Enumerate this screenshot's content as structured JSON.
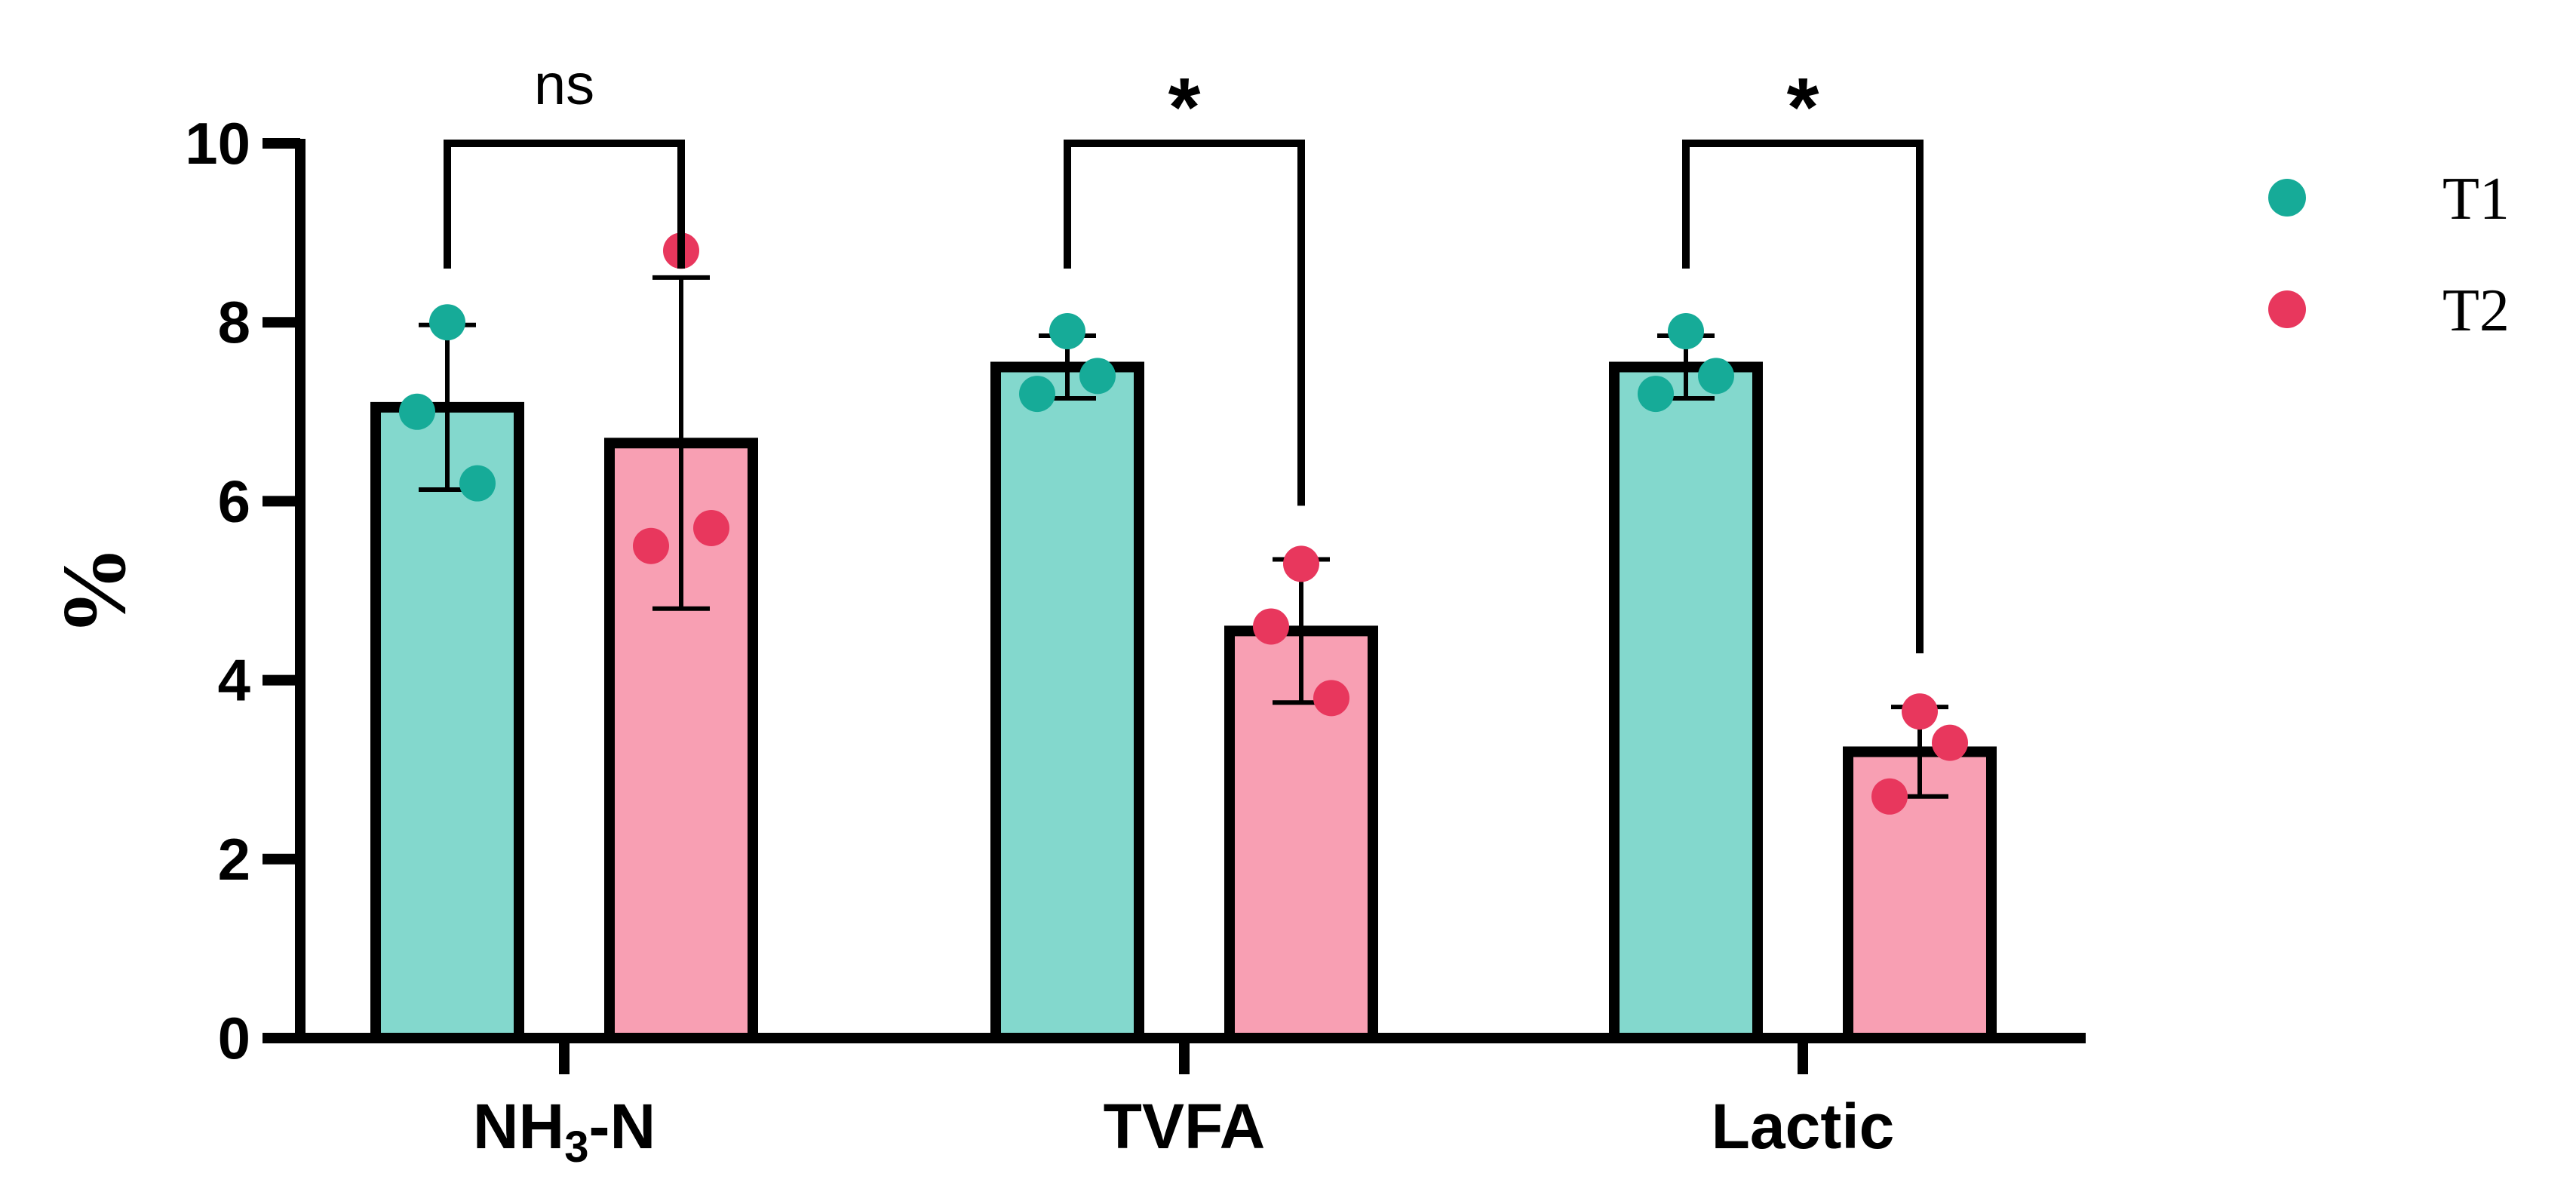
{
  "chart_data": {
    "type": "bar",
    "ylabel": "%",
    "ylim": [
      0,
      10
    ],
    "yticks": [
      "0",
      "2",
      "4",
      "6",
      "8",
      "10"
    ],
    "categories": [
      {
        "label": "NH",
        "sub": "3",
        "suffix": "-N"
      },
      {
        "label": "TVFA",
        "sub": "",
        "suffix": ""
      },
      {
        "label": "Lactic",
        "sub": "",
        "suffix": ""
      }
    ],
    "series": [
      {
        "name": "T1",
        "fill": "#83d8cd",
        "dot": "#16ab98",
        "values": [
          7.05,
          7.5,
          7.5
        ],
        "sd": [
          0.92,
          0.35,
          0.35
        ],
        "points": [
          [
            8.0,
            7.0,
            6.2
          ],
          [
            7.9,
            7.2,
            7.4
          ],
          [
            7.9,
            7.2,
            7.4
          ]
        ]
      },
      {
        "name": "T2",
        "fill": "#f89fb3",
        "dot": "#e8375d",
        "values": [
          6.65,
          4.55,
          3.2
        ],
        "sd": [
          1.85,
          0.8,
          0.5
        ],
        "points": [
          [
            8.8,
            5.5,
            5.7
          ],
          [
            5.3,
            4.6,
            3.8
          ],
          [
            3.65,
            2.7,
            3.3
          ]
        ]
      }
    ],
    "significance": [
      {
        "label": "ns",
        "y_left": 8.6,
        "y_right": 8.6
      },
      {
        "label": "*",
        "y_left": 8.6,
        "y_right": 5.95
      },
      {
        "label": "*",
        "y_left": 8.6,
        "y_right": 4.3
      }
    ],
    "bracket_top": 10,
    "legend_position": "top-right"
  }
}
